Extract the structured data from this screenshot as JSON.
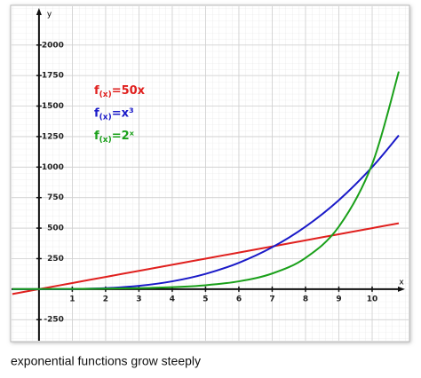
{
  "chart_data": {
    "type": "line",
    "caption": "exponential functions grow steeply",
    "x_label": "x",
    "y_label": "y",
    "x": [
      -0.8,
      0,
      1,
      2,
      3,
      4,
      5,
      6,
      7,
      8,
      9,
      10,
      10.8
    ],
    "series": [
      {
        "name": "f(x)=50x",
        "color": "#e0201e",
        "values": [
          -40,
          0,
          50,
          100,
          150,
          200,
          250,
          300,
          350,
          400,
          450,
          500,
          540
        ]
      },
      {
        "name": "f(x)=x³",
        "color": "#1a1ac8",
        "values": [
          -0.5,
          0,
          1,
          8,
          27,
          64,
          125,
          216,
          343,
          512,
          729,
          1000,
          1260
        ]
      },
      {
        "name": "f(x)=2ˣ",
        "color": "#1aa01a",
        "values": [
          0.6,
          1,
          2,
          4,
          8,
          16,
          32,
          64,
          128,
          256,
          512,
          1024,
          1783
        ]
      }
    ],
    "xlim": [
      -0.85,
      10.8
    ],
    "ylim": [
      -430,
      2260
    ],
    "xticks": [
      1,
      2,
      3,
      4,
      5,
      6,
      7,
      8,
      9,
      10
    ],
    "yticks": [
      -250,
      250,
      500,
      750,
      1000,
      1250,
      1500,
      1750,
      2000
    ],
    "grid": true
  }
}
